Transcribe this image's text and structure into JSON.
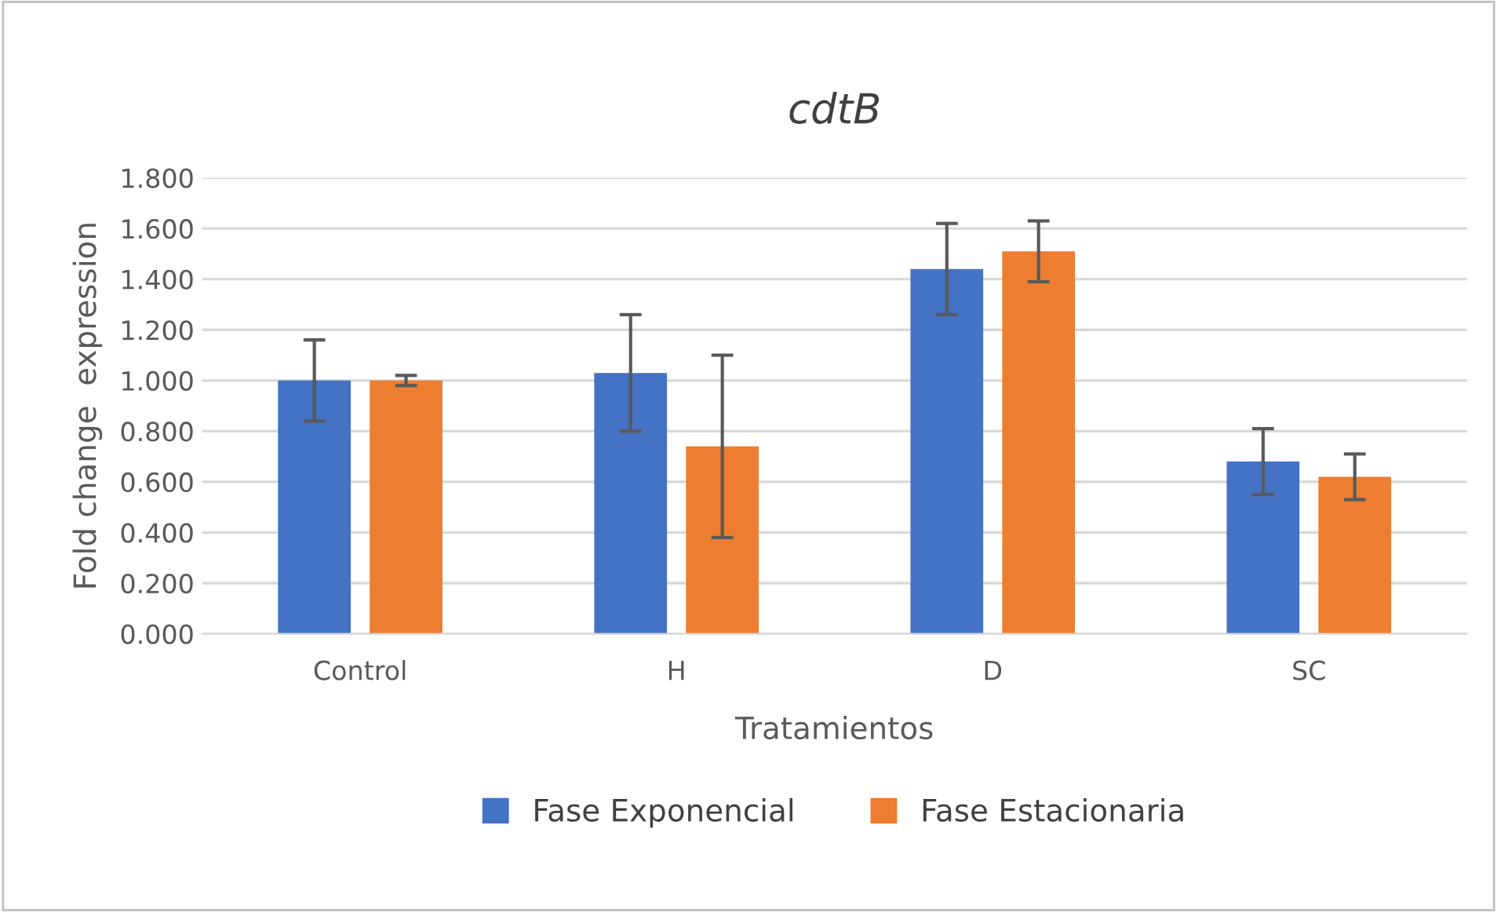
{
  "chart_data": {
    "type": "bar",
    "title": "cdtB",
    "xlabel": "Tratamientos",
    "ylabel": "Fold change  expression",
    "categories": [
      "Control",
      "H",
      "D",
      "SC"
    ],
    "series": [
      {
        "name": "Fase Exponencial",
        "color": "#4472c4",
        "values": [
          1.0,
          1.03,
          1.44,
          0.68
        ],
        "errors": [
          0.16,
          0.23,
          0.18,
          0.13
        ]
      },
      {
        "name": "Fase Estacionaria",
        "color": "#ed7d31",
        "values": [
          1.0,
          0.74,
          1.51,
          0.62
        ],
        "errors": [
          0.02,
          0.36,
          0.12,
          0.09
        ]
      }
    ],
    "ylim": [
      0,
      1.8
    ],
    "yticks": [
      {
        "value": 0,
        "label": "0.000"
      },
      {
        "value": 0.2,
        "label": "0.200"
      },
      {
        "value": 0.4,
        "label": "0.400"
      },
      {
        "value": 0.6,
        "label": "0.600"
      },
      {
        "value": 0.8,
        "label": "0.800"
      },
      {
        "value": 1.0,
        "label": "1.000"
      },
      {
        "value": 1.2,
        "label": "1.200"
      },
      {
        "value": 1.4,
        "label": "1.400"
      },
      {
        "value": 1.6,
        "label": "1.600"
      },
      {
        "value": 1.8,
        "label": "1.800"
      }
    ],
    "grid": "y",
    "legend": "bottom"
  }
}
